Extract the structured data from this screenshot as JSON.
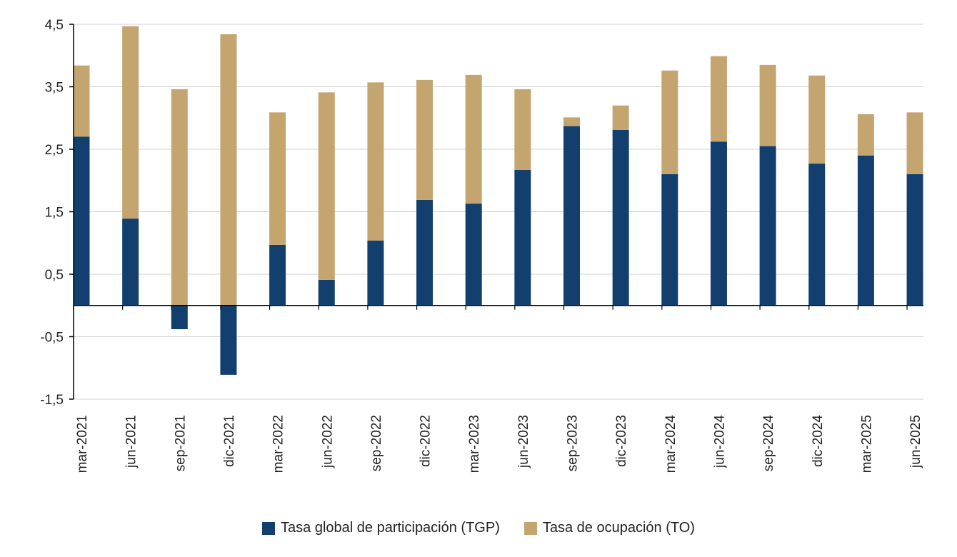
{
  "chart_data": {
    "type": "bar",
    "stacked": true,
    "categories": [
      "mar-2021",
      "jun-2021",
      "sep-2021",
      "dic-2021",
      "mar-2022",
      "jun-2022",
      "sep-2022",
      "dic-2022",
      "mar-2023",
      "jun-2023",
      "sep-2023",
      "dic-2023",
      "mar-2024",
      "jun-2024",
      "sep-2024",
      "dic-2024",
      "mar-2025",
      "jun-2025"
    ],
    "series": [
      {
        "name": "Tasa global de participación (TGP)",
        "color": "#123f6d",
        "values": [
          2.7,
          1.39,
          -0.38,
          -1.11,
          0.97,
          0.41,
          1.04,
          1.69,
          1.63,
          2.17,
          2.87,
          2.81,
          2.1,
          2.62,
          2.55,
          2.27,
          2.4,
          2.1
        ]
      },
      {
        "name": "Tasa de ocupación (TO)",
        "color": "#c4a46f",
        "values": [
          1.14,
          3.08,
          3.46,
          4.34,
          2.12,
          3.0,
          2.53,
          1.92,
          2.06,
          1.29,
          0.14,
          0.39,
          1.66,
          1.37,
          1.3,
          1.41,
          0.66,
          0.99
        ]
      }
    ],
    "yticks": [
      "4,5",
      "3,5",
      "2,5",
      "1,5",
      "0,5",
      "-0,5",
      "-1,5"
    ],
    "ytick_values": [
      4.5,
      3.5,
      2.5,
      1.5,
      0.5,
      -0.5,
      -1.5
    ],
    "ylim": [
      -1.5,
      4.5
    ],
    "grid": true,
    "legend": "bottom",
    "xlabel": "",
    "ylabel": ""
  }
}
